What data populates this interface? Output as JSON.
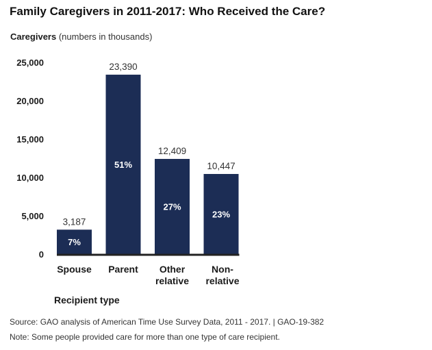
{
  "chart_data": {
    "type": "bar",
    "title": "Family Caregivers in 2011-2017: Who Received the Care?",
    "ylabel_bold": "Caregivers",
    "ylabel_rest": "(numbers in thousands)",
    "xlabel": "Recipient type",
    "categories": [
      [
        "Spouse"
      ],
      [
        "Parent"
      ],
      [
        "Other",
        "relative"
      ],
      [
        "Non-",
        "relative"
      ]
    ],
    "values": [
      3187,
      23390,
      12409,
      10447
    ],
    "value_labels": [
      "3,187",
      "23,390",
      "12,409",
      "10,447"
    ],
    "percent_labels": [
      "7%",
      "51%",
      "27%",
      "23%"
    ],
    "yticks": [
      0,
      5000,
      10000,
      15000,
      20000,
      25000
    ],
    "ytick_labels": [
      "0",
      "5,000",
      "10,000",
      "15,000",
      "20,000",
      "25,000"
    ],
    "ylim": [
      0,
      25000
    ],
    "grid": false,
    "bar_color": "#1c2d55",
    "axis_color": "#222222"
  },
  "source": "Source: GAO analysis of American Time Use Survey Data, 2011 - 2017.  |  GAO-19-382",
  "note": "Note: Some people provided care for more than one type of care recipient."
}
